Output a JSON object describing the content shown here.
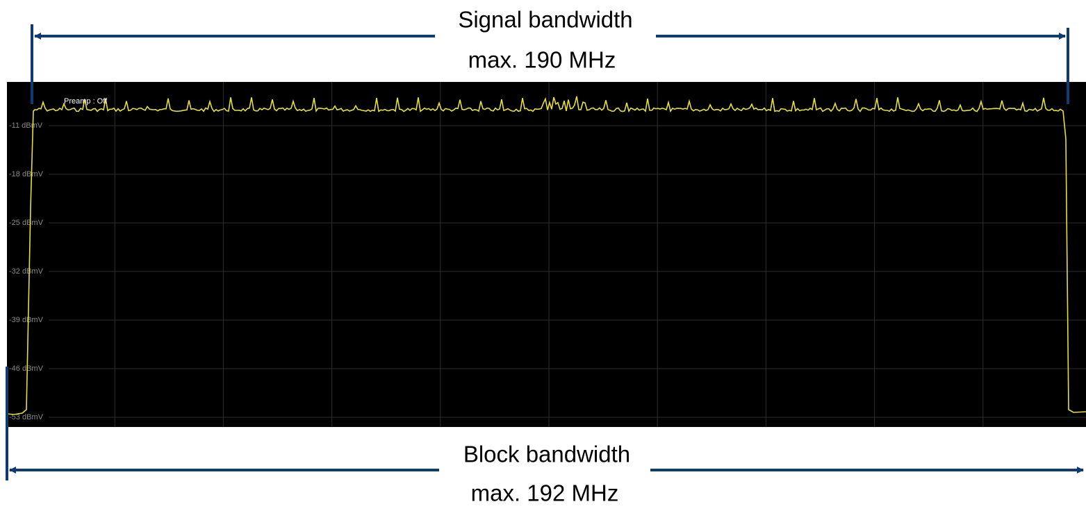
{
  "signal_bandwidth": {
    "title": "Signal bandwidth",
    "limit": "max. 190 MHz"
  },
  "block_bandwidth": {
    "title": "Block bandwidth",
    "limit": "max. 192 MHz"
  },
  "screen": {
    "status": "Preamp : Off",
    "y_axis_labels": [
      "-11 dBmV",
      "-18 dBmV",
      "-25 dBmV",
      "-32 dBmV",
      "-39 dBmV",
      "-46 dBmV",
      "-53 dBmV"
    ]
  }
}
